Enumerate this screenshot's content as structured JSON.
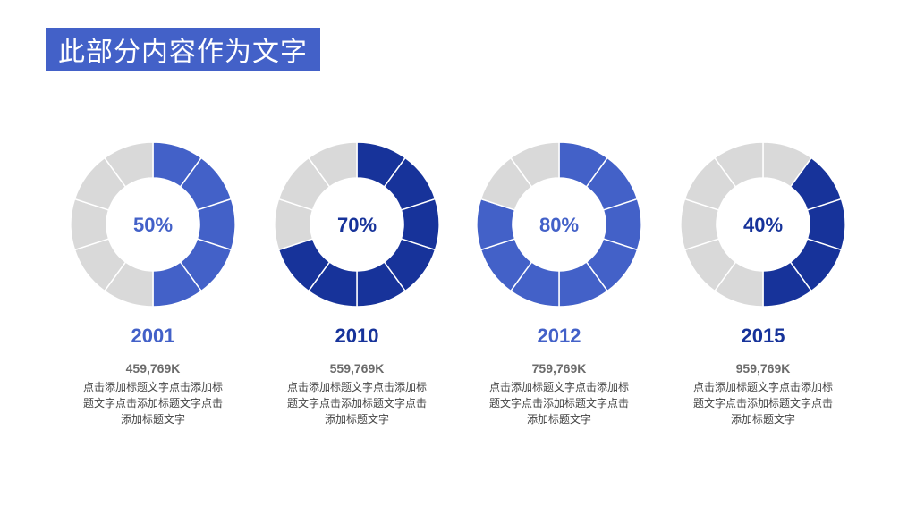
{
  "header": {
    "title": "此部分内容作为文字"
  },
  "colors": {
    "title_bg": "#4361C8",
    "gray": "#D9D9D9",
    "light_blue": "#4361C8",
    "dark_blue": "#17339A"
  },
  "chart_data": [
    {
      "type": "pie",
      "variant": "donut",
      "segments": 10,
      "percent": 50,
      "percent_label": "50%",
      "year": "2001",
      "amount": "459,769K",
      "description": "点击添加标题文字点击添加标题文字点击添加标题文字点击添加标题文字",
      "color": "#4361C8",
      "fill_start_segment": 0
    },
    {
      "type": "pie",
      "variant": "donut",
      "segments": 10,
      "percent": 70,
      "percent_label": "70%",
      "year": "2010",
      "amount": "559,769K",
      "description": "点击添加标题文字点击添加标题文字点击添加标题文字点击添加标题文字",
      "color": "#17339A",
      "fill_start_segment": 0
    },
    {
      "type": "pie",
      "variant": "donut",
      "segments": 10,
      "percent": 80,
      "percent_label": "80%",
      "year": "2012",
      "amount": "759,769K",
      "description": "点击添加标题文字点击添加标题文字点击添加标题文字点击添加标题文字",
      "color": "#4361C8",
      "fill_start_segment": 0
    },
    {
      "type": "pie",
      "variant": "donut",
      "segments": 10,
      "percent": 40,
      "percent_label": "40%",
      "year": "2015",
      "amount": "959,769K",
      "description": "点击添加标题文字点击添加标题文字点击添加标题文字点击添加标题文字",
      "color": "#17339A",
      "fill_start_segment": 1
    }
  ]
}
